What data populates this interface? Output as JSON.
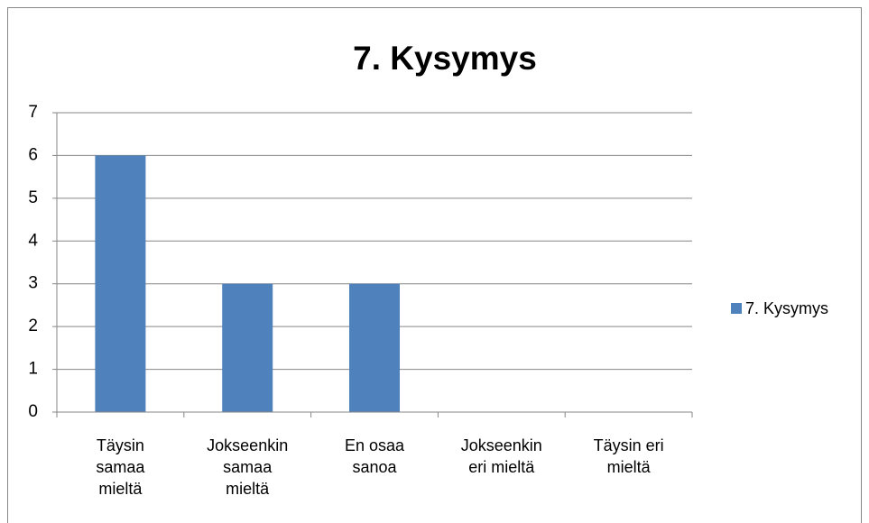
{
  "chart_data": {
    "type": "bar",
    "title": "7. Kysymys",
    "categories": [
      "Täysin samaa mieltä",
      "Jokseenkin samaa mieltä",
      "En osaa sanoa",
      "Jokseenkin eri mieltä",
      "Täysin eri mieltä"
    ],
    "series": [
      {
        "name": "7. Kysymys",
        "color": "#4f81bd",
        "values": [
          6,
          3,
          3,
          0,
          0
        ]
      }
    ],
    "ylim": [
      0,
      7
    ],
    "yticks": [
      0,
      1,
      2,
      3,
      4,
      5,
      6,
      7
    ],
    "grid": true,
    "legend": "right"
  }
}
